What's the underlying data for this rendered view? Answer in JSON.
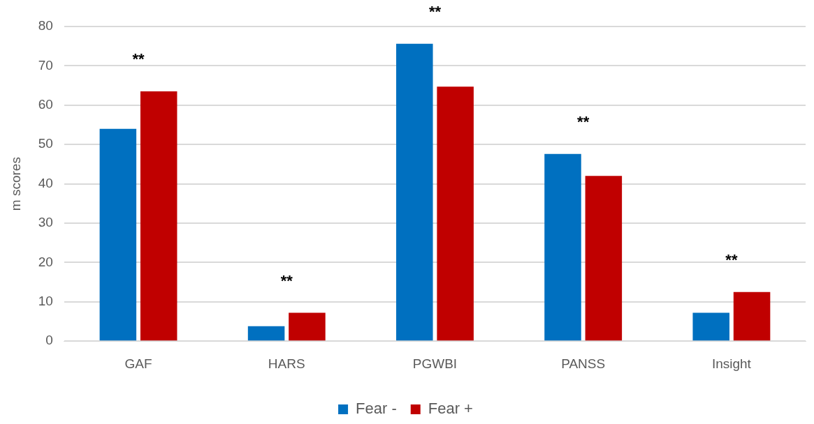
{
  "chart_data": {
    "type": "bar",
    "ylabel": "m scores",
    "categories": [
      "GAF",
      "HARS",
      "PGWBI",
      "PANSS",
      "Insight"
    ],
    "series": [
      {
        "name": "Fear -",
        "color": "#0070c0",
        "values": [
          54.0,
          3.8,
          75.6,
          47.6,
          7.2
        ]
      },
      {
        "name": "Fear +",
        "color": "#c00000",
        "values": [
          63.5,
          7.2,
          64.7,
          42.0,
          12.5
        ]
      }
    ],
    "ylim": [
      0,
      80
    ],
    "yticks": [
      0,
      10,
      20,
      30,
      40,
      50,
      60,
      70,
      80
    ],
    "grid": "y",
    "legend": "bottom",
    "annotations": [
      "**",
      "**",
      "**",
      "**",
      "**"
    ]
  }
}
